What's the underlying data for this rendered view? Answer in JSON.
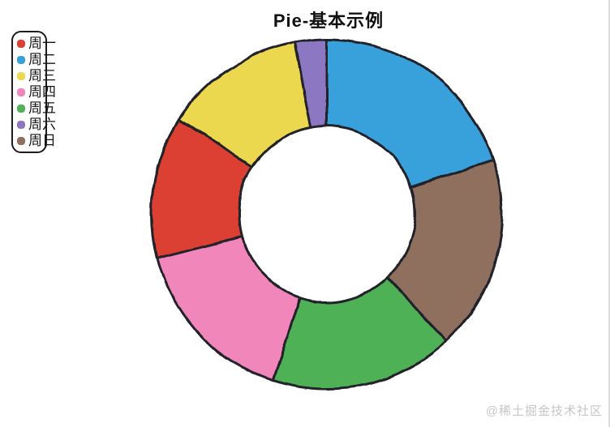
{
  "watermark": "@稀土掘金技术社区",
  "chart_data": {
    "type": "pie",
    "subtype": "donut",
    "title": "Pie-基本示例",
    "categories": [
      "周一",
      "周二",
      "周三",
      "周四",
      "周五",
      "周六",
      "周日"
    ],
    "values_percent": [
      13,
      20,
      13,
      16,
      17,
      3,
      18
    ],
    "colors": [
      "#dc4031",
      "#39a0db",
      "#ecd84f",
      "#f086ba",
      "#50b156",
      "#8c77c3",
      "#8f705f"
    ],
    "outline_color": "#21212b",
    "inner_radius_ratio": 0.5,
    "start_angle": "top",
    "sort": "descending-clockwise-from-top",
    "clockwise_order_from_top": [
      "周二",
      "周日",
      "周五",
      "周四",
      "周一",
      "周三",
      "周六"
    ],
    "legend_position": "top-left",
    "style": "hand-drawn-sketch"
  }
}
